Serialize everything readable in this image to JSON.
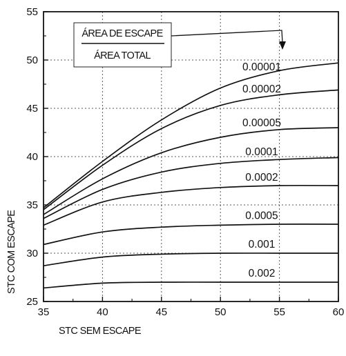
{
  "chart_data": {
    "type": "line",
    "xlabel": "STC SEM ESCAPE",
    "ylabel": "STC COM ESCAPE",
    "xlim": [
      35,
      60
    ],
    "ylim": [
      25,
      55
    ],
    "x_ticks": [
      "35",
      "40",
      "45",
      "50",
      "55",
      "60"
    ],
    "y_ticks": [
      "25",
      "30",
      "35",
      "40",
      "45",
      "50",
      "55"
    ],
    "grid": true,
    "legend": {
      "numerator": "ÁREA DE ESCAPE",
      "denominator": "ÁREA TOTAL"
    },
    "x": [
      35,
      40,
      45,
      50,
      55,
      60
    ],
    "series": [
      {
        "name": "0.00001",
        "values": [
          34.7,
          39.5,
          43.8,
          47.1,
          48.9,
          49.7
        ]
      },
      {
        "name": "0.00002",
        "values": [
          34.5,
          39.1,
          42.9,
          45.3,
          46.4,
          46.9
        ]
      },
      {
        "name": "0.00005",
        "values": [
          34.0,
          37.7,
          40.4,
          42.0,
          42.8,
          43.0
        ]
      },
      {
        "name": "0.0001",
        "values": [
          33.6,
          36.6,
          38.4,
          39.3,
          39.7,
          39.9
        ]
      },
      {
        "name": "0.0002",
        "values": [
          32.9,
          35.3,
          36.3,
          36.8,
          37.0,
          37.0
        ]
      },
      {
        "name": "0.0005",
        "values": [
          30.9,
          32.2,
          32.7,
          32.9,
          33.0,
          33.0
        ]
      },
      {
        "name": "0.001",
        "values": [
          28.7,
          29.6,
          29.9,
          30.0,
          30.0,
          30.0
        ]
      },
      {
        "name": "0.002",
        "values": [
          26.4,
          26.9,
          27.0,
          27.0,
          27.0,
          27.0
        ]
      }
    ]
  }
}
